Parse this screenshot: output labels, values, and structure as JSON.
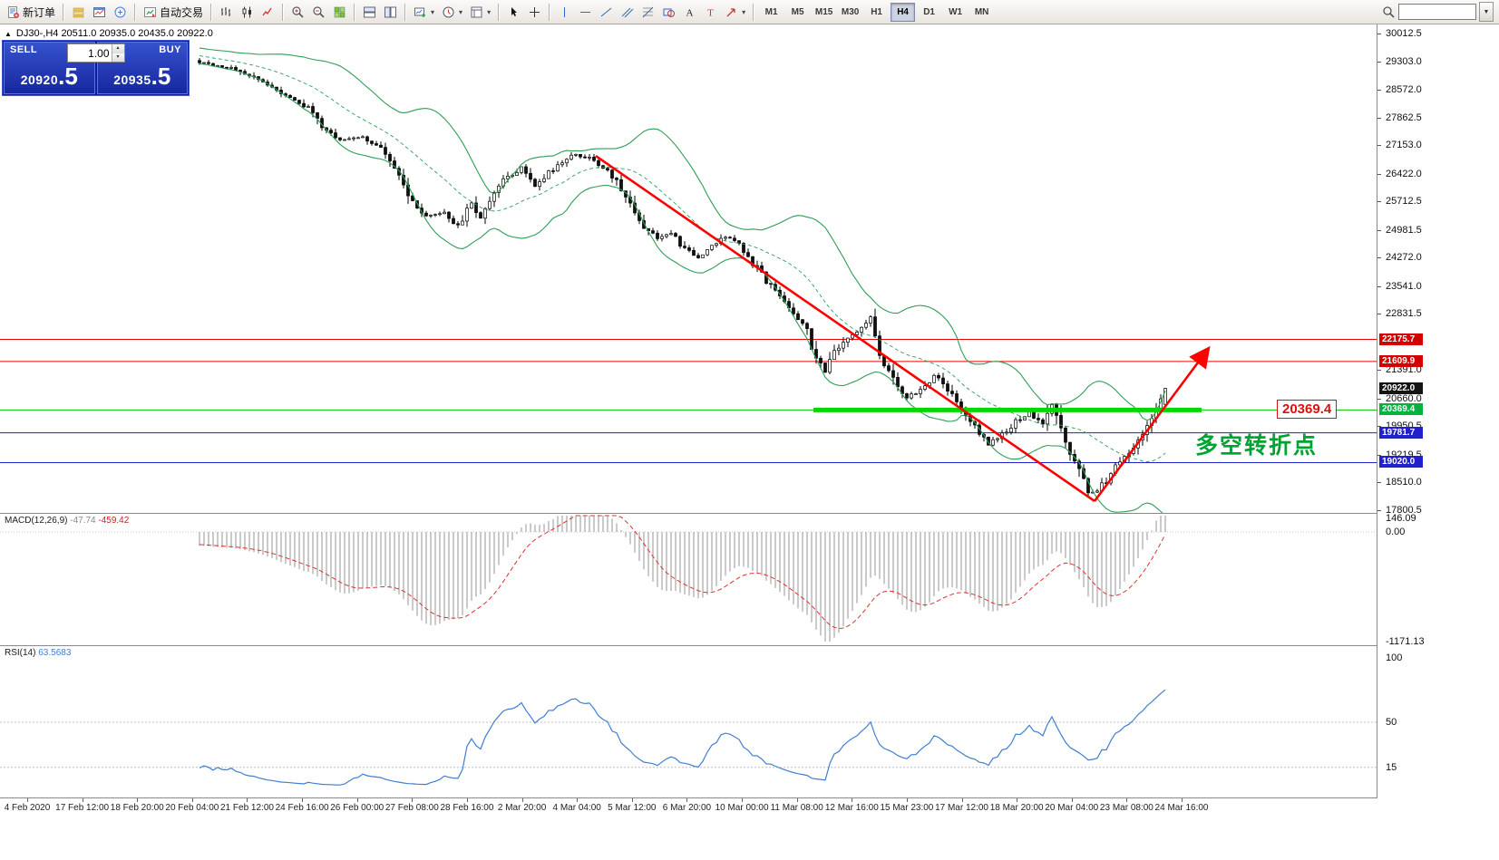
{
  "toolbar": {
    "groups": [
      {
        "items": [
          {
            "name": "new-order-button",
            "icon": "new-order-icon",
            "label": "新订单"
          }
        ]
      },
      {
        "items": [
          {
            "name": "market-watch-button",
            "icon": "layers-icon"
          },
          {
            "name": "chart-window-button",
            "icon": "chart-window-icon"
          },
          {
            "name": "data-window-button",
            "icon": "data-window-icon"
          }
        ]
      },
      {
        "items": [
          {
            "name": "autotrade-button",
            "icon": "autotrade-icon",
            "label": "自动交易"
          }
        ]
      },
      {
        "items": [
          {
            "name": "bar-chart-button",
            "icon": "bar-chart-icon"
          },
          {
            "name": "candlestick-chart-button",
            "icon": "candlestick-icon"
          },
          {
            "name": "line-chart-button",
            "icon": "line-chart-icon"
          }
        ]
      },
      {
        "items": [
          {
            "name": "zoom-in-button",
            "icon": "zoom-in-icon"
          },
          {
            "name": "zoom-out-button",
            "icon": "zoom-out-icon"
          },
          {
            "name": "tile-windows-button",
            "icon": "tile-grid-icon"
          }
        ]
      },
      {
        "items": [
          {
            "name": "arrange-horizontal-button",
            "icon": "window-h-icon"
          },
          {
            "name": "arrange-vertical-button",
            "icon": "window-v-icon"
          }
        ]
      },
      {
        "items": [
          {
            "name": "new-chart-button",
            "icon": "new-chart-icon",
            "caret": true
          },
          {
            "name": "period-menu-button",
            "icon": "clock-icon",
            "caret": true
          },
          {
            "name": "templates-button",
            "icon": "template-icon",
            "caret": true
          }
        ]
      },
      {
        "items": [
          {
            "name": "cursor-button",
            "icon": "cursor-icon"
          },
          {
            "name": "crosshair-button",
            "icon": "crosshair-icon"
          }
        ]
      },
      {
        "items": [
          {
            "name": "vertical-line-button",
            "icon": "vline-icon"
          },
          {
            "name": "horizontal-line-button",
            "icon": "hline-icon"
          },
          {
            "name": "trendline-button",
            "icon": "trendline-icon"
          },
          {
            "name": "channel-button",
            "icon": "channel-icon"
          },
          {
            "name": "fibonacci-button",
            "icon": "fibo-icon"
          },
          {
            "name": "shapes-button",
            "icon": "shapes-icon"
          },
          {
            "name": "text-button",
            "icon": "text-icon"
          },
          {
            "name": "label-button",
            "icon": "label-icon"
          },
          {
            "name": "arrows-button",
            "icon": "arrow-icon",
            "caret": true
          }
        ]
      }
    ],
    "timeframes": {
      "active": "H4",
      "items": [
        "M1",
        "M5",
        "M15",
        "M30",
        "H1",
        "H4",
        "D1",
        "W1",
        "MN"
      ]
    },
    "search": {
      "value": ""
    }
  },
  "symbol_bar": {
    "collapse_glyph": "▲",
    "text": "DJ30-,H4 20511.0 20935.0 20435.0 20922.0"
  },
  "trade_panel": {
    "sell_label": "SELL",
    "buy_label": "BUY",
    "volume": "1.00",
    "sell_price": {
      "main": "20920",
      "frac": ".5"
    },
    "buy_price": {
      "main": "20935",
      "frac": ".5"
    }
  },
  "annotations": {
    "pivot_text": "多空转折点",
    "level_box_text": "20369.4"
  },
  "price_axis": {
    "labels": [
      "30012.5",
      "29303.0",
      "28572.0",
      "27862.5",
      "27153.0",
      "26422.0",
      "25712.5",
      "24981.5",
      "24272.0",
      "23541.0",
      "22831.5",
      "21391.0",
      "20660.0",
      "19950.5",
      "19219.5",
      "18510.0",
      "17800.5"
    ],
    "badges": [
      {
        "text": "22175.7",
        "color": "#d40000",
        "price": 22175.7
      },
      {
        "text": "21609.9",
        "color": "#d40000",
        "price": 21609.9
      },
      {
        "text": "20922.0",
        "color": "#141414",
        "price": 20922.0
      },
      {
        "text": "20369.4",
        "color": "#00b33c",
        "price": 20369.4
      },
      {
        "text": "19781.7",
        "color": "#2020cc",
        "price": 19781.7
      },
      {
        "text": "19020.0",
        "color": "#2020cc",
        "price": 19020.0
      }
    ]
  },
  "overlays": {
    "hlines": [
      {
        "price": 22175.7,
        "color": "#f00000",
        "width": 1
      },
      {
        "price": 21609.9,
        "color": "#f00000",
        "width": 1
      },
      {
        "price": 20369.4,
        "color": "#00c800",
        "width": 1
      },
      {
        "price": 19781.7,
        "color": "#2020cc",
        "width": 1
      },
      {
        "price": 19020.0,
        "color": "#2020cc",
        "width": 1
      }
    ],
    "thick_level": {
      "price": 20369.4,
      "i1": 135.4,
      "i2": 221,
      "color": "#00d800",
      "width": 5
    },
    "trendlines": [
      {
        "i1": 87.4,
        "p1": 26878,
        "i2": 197.4,
        "p2": 18033,
        "color": "#ff0000",
        "width": 2.6,
        "arrow": false
      },
      {
        "i1": 197.4,
        "p1": 18033,
        "i2": 222.6,
        "p2": 21956,
        "color": "#ff0000",
        "width": 2.6,
        "arrow": true
      }
    ]
  },
  "chart_data": {
    "type": "candlestick",
    "symbol": "DJ30-",
    "period": "H4",
    "ohlc": {
      "open": "20511.0",
      "high": "20935.0",
      "low": "20435.0",
      "close": "20922.0"
    },
    "price_axis_range": {
      "top": 30012.5,
      "bottom": 17800.5
    },
    "candle_count": 214,
    "anchors": [
      [
        0,
        29280
      ],
      [
        8,
        29100
      ],
      [
        16,
        28660
      ],
      [
        24,
        28090
      ],
      [
        27,
        27620
      ],
      [
        31,
        27270
      ],
      [
        36,
        27390
      ],
      [
        40,
        27040
      ],
      [
        44,
        26350
      ],
      [
        47,
        25650
      ],
      [
        50,
        25300
      ],
      [
        54,
        25420
      ],
      [
        57,
        25070
      ],
      [
        60,
        25650
      ],
      [
        62,
        25300
      ],
      [
        65,
        26000
      ],
      [
        68,
        26350
      ],
      [
        71,
        26580
      ],
      [
        74,
        26110
      ],
      [
        77,
        26460
      ],
      [
        80,
        26690
      ],
      [
        83,
        26930
      ],
      [
        86,
        26810
      ],
      [
        89,
        26580
      ],
      [
        92,
        26230
      ],
      [
        95,
        25650
      ],
      [
        98,
        25070
      ],
      [
        101,
        24790
      ],
      [
        104,
        24880
      ],
      [
        107,
        24490
      ],
      [
        110,
        24260
      ],
      [
        113,
        24600
      ],
      [
        116,
        24790
      ],
      [
        119,
        24650
      ],
      [
        122,
        24140
      ],
      [
        125,
        23680
      ],
      [
        128,
        23330
      ],
      [
        131,
        22860
      ],
      [
        134,
        22400
      ],
      [
        136,
        21700
      ],
      [
        138,
        21350
      ],
      [
        140,
        21820
      ],
      [
        143,
        22170
      ],
      [
        146,
        22520
      ],
      [
        148,
        22700
      ],
      [
        150,
        21820
      ],
      [
        153,
        21120
      ],
      [
        156,
        20660
      ],
      [
        159,
        20890
      ],
      [
        162,
        21240
      ],
      [
        165,
        20890
      ],
      [
        168,
        20430
      ],
      [
        171,
        19960
      ],
      [
        174,
        19500
      ],
      [
        177,
        19730
      ],
      [
        180,
        20080
      ],
      [
        183,
        20310
      ],
      [
        186,
        19960
      ],
      [
        188,
        20500
      ],
      [
        191,
        19500
      ],
      [
        194,
        18800
      ],
      [
        196,
        18220
      ],
      [
        198,
        18340
      ],
      [
        200,
        18570
      ],
      [
        202,
        18920
      ],
      [
        205,
        19270
      ],
      [
        207,
        19610
      ],
      [
        210,
        20190
      ],
      [
        212,
        20660
      ],
      [
        213,
        20922
      ]
    ],
    "indicators": {
      "bollinger": {
        "period": 20,
        "deviation": 2,
        "color": "#2e9e57"
      },
      "macd": {
        "label": "MACD(12,26,9)",
        "value": "-47.74",
        "signal": "-459.42",
        "axis_labels": [
          {
            "text": "146.09",
            "v": 146.09
          },
          {
            "text": "0.00",
            "v": 0
          },
          {
            "text": "-1171.13",
            "v": -1171.13
          }
        ]
      },
      "rsi": {
        "label": "RSI(14)",
        "value": "63.5683",
        "axis_labels": [
          {
            "text": "100",
            "v": 100
          },
          {
            "text": "50",
            "v": 50
          },
          {
            "text": "15",
            "v": 15
          }
        ],
        "levels": [
          50,
          15
        ]
      }
    }
  },
  "time_axis": {
    "labels": [
      "4 Feb 2020",
      "17 Feb 12:00",
      "18 Feb 20:00",
      "20 Feb 04:00",
      "21 Feb 12:00",
      "24 Feb 16:00",
      "26 Feb 00:00",
      "27 Feb 08:00",
      "28 Feb 16:00",
      "2 Mar 20:00",
      "4 Mar 04:00",
      "5 Mar 12:00",
      "6 Mar 20:00",
      "10 Mar 00:00",
      "11 Mar 08:00",
      "12 Mar 16:00",
      "15 Mar 23:00",
      "17 Mar 12:00",
      "18 Mar 20:00",
      "20 Mar 04:00",
      "23 Mar 08:00",
      "24 Mar 16:00"
    ]
  }
}
